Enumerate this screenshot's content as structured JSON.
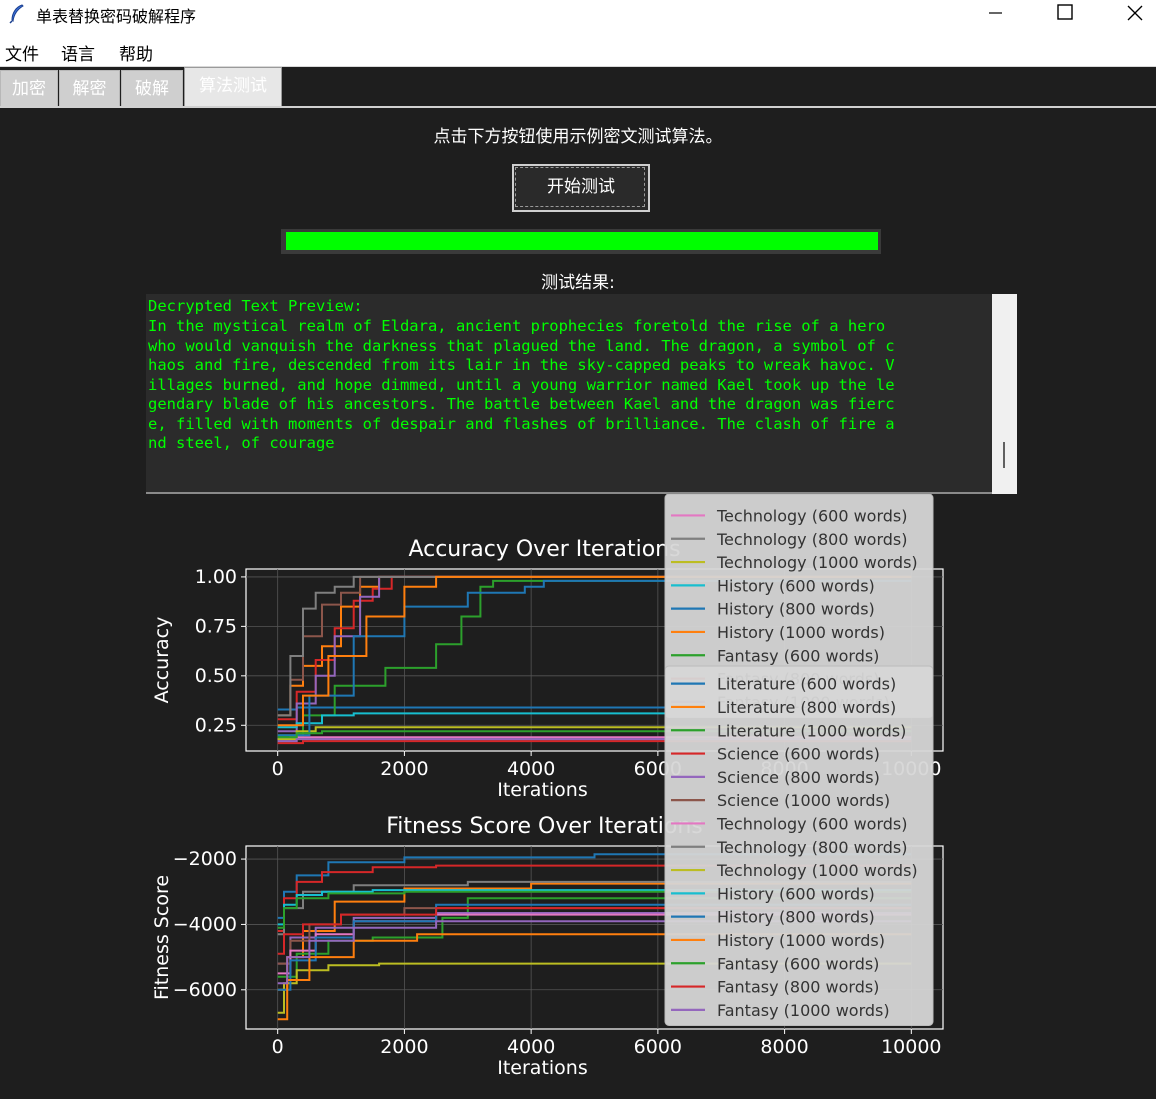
{
  "window": {
    "title": "单表替换密码破解程序",
    "icon": "feather-icon",
    "controls": [
      "minimize-icon",
      "maximize-icon",
      "close-icon"
    ]
  },
  "menu": {
    "items": [
      "文件",
      "语言",
      "帮助"
    ]
  },
  "tabs": [
    {
      "label": "加密",
      "active": false
    },
    {
      "label": "解密",
      "active": false
    },
    {
      "label": "破解",
      "active": false
    },
    {
      "label": "算法测试",
      "active": true
    }
  ],
  "test_panel": {
    "instruction": "点击下方按钮使用示例密文测试算法。",
    "start_button": "开始测试",
    "progress_fraction": 1.0,
    "results_label": "测试结果:",
    "result_lines": [
      "Decrypted Text Preview:",
      "In the mystical realm of Eldara, ancient prophecies foretold the rise of a hero ",
      "who would vanquish the darkness that plagued the land. The dragon, a symbol of c",
      "haos and fire, descended from its lair in the sky-capped peaks to wreak havoc. V",
      "illages burned, and hope dimmed, until a young warrior named Kael took up the le",
      "gendary blade of his ancestors. The battle between Kael and the dragon was fierc",
      "e, filled with moments of despair and flashes of brilliance. The clash of fire a",
      "nd steel, of courage"
    ]
  },
  "colors": {
    "background": "#1e1e1e",
    "text_green": "#00ff00",
    "progress": "#00ff00"
  },
  "chart_data": [
    {
      "type": "line",
      "title": "Accuracy Over Iterations",
      "xlabel": "Iterations",
      "ylabel": "Accuracy",
      "xlim": [
        -500,
        10500
      ],
      "ylim": [
        0.12,
        1.04
      ],
      "xticks": [
        "0",
        "2000",
        "4000",
        "6000",
        "8000",
        "10000"
      ],
      "yticks": [
        "0.25",
        "0.50",
        "0.75",
        "1.00"
      ],
      "grid": true,
      "legend_location": "right, overlapping",
      "series": [
        {
          "name": "Literature (600 words)",
          "color": "#1f77b4",
          "x": [
            0,
            150,
            300,
            600,
            900,
            1200,
            1500,
            10000
          ],
          "y": [
            0.33,
            0.33,
            0.34,
            0.34,
            0.34,
            0.34,
            0.34,
            0.34
          ]
        },
        {
          "name": "Literature (800 words)",
          "color": "#ff7f0e",
          "x": [
            0,
            200,
            400,
            700,
            1000,
            1300,
            1600,
            10000
          ],
          "y": [
            0.3,
            0.45,
            0.55,
            0.65,
            0.85,
            0.95,
            1.0,
            1.0
          ]
        },
        {
          "name": "Literature (1000 words)",
          "color": "#2ca02c",
          "x": [
            0,
            400,
            900,
            1700,
            2200,
            2500,
            2900,
            3200,
            3400,
            10000
          ],
          "y": [
            0.2,
            0.3,
            0.45,
            0.54,
            0.54,
            0.66,
            0.8,
            0.95,
            0.98,
            0.98
          ]
        },
        {
          "name": "Science (600 words)",
          "color": "#d62728",
          "x": [
            0,
            300,
            600,
            900,
            1200,
            1500,
            1800,
            10000
          ],
          "y": [
            0.28,
            0.42,
            0.58,
            0.74,
            0.88,
            0.94,
            1.0,
            1.0
          ]
        },
        {
          "name": "Science (800 words)",
          "color": "#9467bd",
          "x": [
            0,
            300,
            600,
            900,
            1300,
            1600,
            10000
          ],
          "y": [
            0.22,
            0.36,
            0.5,
            0.7,
            0.9,
            1.0,
            1.0
          ]
        },
        {
          "name": "Science (1000 words)",
          "color": "#8c564b",
          "x": [
            0,
            200,
            400,
            700,
            1000,
            1300,
            10000
          ],
          "y": [
            0.3,
            0.48,
            0.7,
            0.86,
            0.92,
            1.0,
            1.0
          ]
        },
        {
          "name": "Technology (600 words)",
          "color": "#e377c2",
          "x": [
            0,
            200,
            500,
            800,
            1200,
            10000
          ],
          "y": [
            0.18,
            0.19,
            0.19,
            0.19,
            0.19,
            0.19
          ]
        },
        {
          "name": "Technology (800 words)",
          "color": "#7f7f7f",
          "x": [
            0,
            200,
            400,
            600,
            900,
            1200,
            10000
          ],
          "y": [
            0.3,
            0.6,
            0.84,
            0.92,
            0.95,
            1.0,
            1.0
          ]
        },
        {
          "name": "Technology (1000 words)",
          "color": "#bcbd22",
          "x": [
            0,
            300,
            600,
            1000,
            1600,
            10000
          ],
          "y": [
            0.18,
            0.22,
            0.24,
            0.24,
            0.24,
            0.24
          ]
        },
        {
          "name": "History (600 words)",
          "color": "#17becf",
          "x": [
            0,
            300,
            700,
            1200,
            10000
          ],
          "y": [
            0.24,
            0.26,
            0.3,
            0.31,
            0.31
          ]
        },
        {
          "name": "History (800 words)",
          "color": "#1f77b4",
          "x": [
            0,
            500,
            1200,
            2000,
            3000,
            3900,
            4200,
            10000
          ],
          "y": [
            0.2,
            0.4,
            0.7,
            0.85,
            0.92,
            0.95,
            0.98,
            0.98
          ]
        },
        {
          "name": "History (1000 words)",
          "color": "#ff7f0e",
          "x": [
            0,
            400,
            800,
            1400,
            2000,
            2500,
            10000
          ],
          "y": [
            0.25,
            0.4,
            0.6,
            0.8,
            0.95,
            1.0,
            1.0
          ]
        },
        {
          "name": "Fantasy (600 words)",
          "color": "#2ca02c",
          "x": [
            0,
            300,
            700,
            1400,
            10000
          ],
          "y": [
            0.19,
            0.21,
            0.22,
            0.22,
            0.22
          ]
        },
        {
          "name": "Fantasy (800 words)",
          "color": "#d62728",
          "x": [
            0,
            400,
            800,
            1200,
            10000
          ],
          "y": [
            0.16,
            0.17,
            0.17,
            0.17,
            0.17
          ]
        },
        {
          "name": "Fantasy (1000 words)",
          "color": "#9467bd",
          "x": [
            0,
            300,
            700,
            1500,
            10000
          ],
          "y": [
            0.17,
            0.18,
            0.18,
            0.18,
            0.18
          ]
        }
      ]
    },
    {
      "type": "line",
      "title": "Fitness Score Over Iterations",
      "xlabel": "Iterations",
      "ylabel": "Fitness Score",
      "xlim": [
        -500,
        10500
      ],
      "ylim": [
        -7200,
        -1600
      ],
      "xticks": [
        "0",
        "2000",
        "4000",
        "6000",
        "8000",
        "10000"
      ],
      "yticks": [
        "−2000",
        "−4000",
        "−6000"
      ],
      "grid": true,
      "legend_location": "right",
      "series": [
        {
          "name": "Literature (600 words)",
          "color": "#1f77b4",
          "x": [
            0,
            100,
            300,
            800,
            2000,
            5000,
            10000
          ],
          "y": [
            -3800,
            -3000,
            -2500,
            -2100,
            -1950,
            -1850,
            -1850
          ]
        },
        {
          "name": "Literature (800 words)",
          "color": "#ff7f0e",
          "x": [
            0,
            150,
            400,
            900,
            2000,
            4000,
            10000
          ],
          "y": [
            -6000,
            -5000,
            -4200,
            -3300,
            -2900,
            -2750,
            -2750
          ]
        },
        {
          "name": "Literature (1000 words)",
          "color": "#2ca02c",
          "x": [
            0,
            300,
            800,
            1500,
            2400,
            2600,
            3000,
            10000
          ],
          "y": [
            -5600,
            -4900,
            -4500,
            -4400,
            -4400,
            -3800,
            -3200,
            -3200
          ]
        },
        {
          "name": "Science (600 words)",
          "color": "#d62728",
          "x": [
            0,
            100,
            300,
            700,
            1500,
            2500,
            10000
          ],
          "y": [
            -4200,
            -3200,
            -2700,
            -2400,
            -2250,
            -2200,
            -2200
          ]
        },
        {
          "name": "Science (800 words)",
          "color": "#9467bd",
          "x": [
            0,
            200,
            600,
            1200,
            2500,
            10000
          ],
          "y": [
            -5200,
            -4400,
            -4100,
            -3800,
            -3650,
            -3650
          ]
        },
        {
          "name": "Science (1000 words)",
          "color": "#8c564b",
          "x": [
            0,
            200,
            500,
            1000,
            2000,
            10000
          ],
          "y": [
            -5200,
            -4500,
            -4000,
            -3700,
            -3500,
            -3500
          ]
        },
        {
          "name": "Technology (600 words)",
          "color": "#e377c2",
          "x": [
            0,
            200,
            600,
            1200,
            2500,
            10000
          ],
          "y": [
            -5500,
            -4800,
            -4300,
            -3900,
            -3700,
            -3700
          ]
        },
        {
          "name": "Technology (800 words)",
          "color": "#7f7f7f",
          "x": [
            0,
            100,
            400,
            1200,
            3000,
            10000
          ],
          "y": [
            -4300,
            -3500,
            -3000,
            -2800,
            -2700,
            -2700
          ]
        },
        {
          "name": "Technology (1000 words)",
          "color": "#bcbd22",
          "x": [
            0,
            100,
            300,
            800,
            1600,
            10000
          ],
          "y": [
            -6700,
            -5800,
            -5400,
            -5250,
            -5200,
            -5200
          ]
        },
        {
          "name": "History (600 words)",
          "color": "#17becf",
          "x": [
            0,
            100,
            300,
            700,
            1500,
            10000
          ],
          "y": [
            -4000,
            -3400,
            -3100,
            -3000,
            -2950,
            -2950
          ]
        },
        {
          "name": "History (800 words)",
          "color": "#1f77b4",
          "x": [
            0,
            200,
            600,
            1200,
            2500,
            10000
          ],
          "y": [
            -6000,
            -5100,
            -4400,
            -3900,
            -3400,
            -3400
          ]
        },
        {
          "name": "History (1000 words)",
          "color": "#ff7f0e",
          "x": [
            0,
            150,
            500,
            1200,
            2200,
            10000
          ],
          "y": [
            -6900,
            -5700,
            -5000,
            -4500,
            -4300,
            -4300
          ]
        },
        {
          "name": "Fantasy (600 words)",
          "color": "#2ca02c",
          "x": [
            0,
            100,
            300,
            800,
            2000,
            10000
          ],
          "y": [
            -4100,
            -3500,
            -3200,
            -3050,
            -3000,
            -3000
          ]
        },
        {
          "name": "Fantasy (800 words)",
          "color": "#d62728",
          "x": [
            0,
            100,
            400,
            1000,
            2500,
            10000
          ],
          "y": [
            -4900,
            -4300,
            -4000,
            -3700,
            -3500,
            -3500
          ]
        },
        {
          "name": "Fantasy (1000 words)",
          "color": "#9467bd",
          "x": [
            0,
            150,
            500,
            1200,
            2500,
            10000
          ],
          "y": [
            -5800,
            -5000,
            -4500,
            -4100,
            -3900,
            -3900
          ]
        }
      ]
    }
  ]
}
